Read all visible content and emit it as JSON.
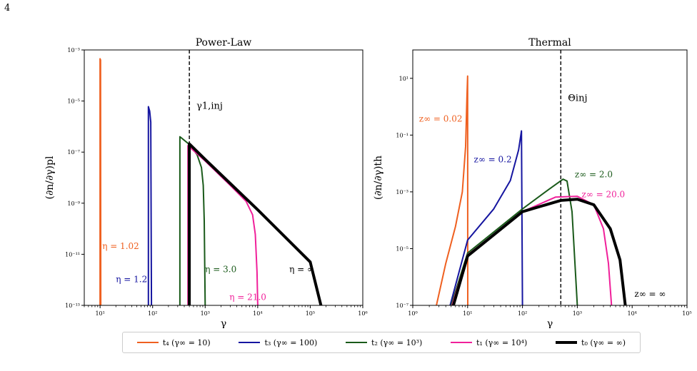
{
  "page_number": "4",
  "colors": {
    "t4": "#ef6020",
    "t3": "#1515a0",
    "t2": "#1a5a1a",
    "t1": "#f0209a",
    "t0": "#000000"
  },
  "legend": [
    {
      "label": "t₄ (γ∞ = 10)",
      "color": "#ef6020",
      "width": 2
    },
    {
      "label": "t₃ (γ∞ = 100)",
      "color": "#1515a0",
      "width": 2
    },
    {
      "label": "t₂ (γ∞ = 10³)",
      "color": "#1a5a1a",
      "width": 2
    },
    {
      "label": "t₁ (γ∞ = 10⁴)",
      "color": "#f0209a",
      "width": 2
    },
    {
      "label": "t₀ (γ∞ = ∞)",
      "color": "#000000",
      "width": 4
    }
  ],
  "chart_data": [
    {
      "type": "line",
      "title": "Power-Law",
      "xlabel": "γ",
      "ylabel": "(∂n/∂γ)pl",
      "xscale": "log",
      "yscale": "log",
      "xlim": [
        5,
        1000000
      ],
      "ylim": [
        1e-13,
        0.001
      ],
      "xticks": [
        {
          "value": 10,
          "label": "10¹"
        },
        {
          "value": 100,
          "label": "10²"
        },
        {
          "value": 1000,
          "label": "10³"
        },
        {
          "value": 10000,
          "label": "10⁴"
        },
        {
          "value": 100000,
          "label": "10⁵"
        },
        {
          "value": 1000000,
          "label": "10⁶"
        }
      ],
      "yticks": [
        {
          "value": 1e-13,
          "label": "10⁻¹³"
        },
        {
          "value": 1e-11,
          "label": "10⁻¹¹"
        },
        {
          "value": 1e-09,
          "label": "10⁻⁹"
        },
        {
          "value": 1e-07,
          "label": "10⁻⁷"
        },
        {
          "value": 1e-05,
          "label": "10⁻⁵"
        },
        {
          "value": 0.001,
          "label": "10⁻³"
        }
      ],
      "vline": {
        "x": 500,
        "label": "γ1,inj",
        "label_y": 5e-06
      },
      "series": [
        {
          "key": "t4",
          "width": 2,
          "points": [
            [
              10,
              1e-13
            ],
            [
              10,
              0.00045
            ],
            [
              10.2,
              0.0004
            ],
            [
              10.3,
              1e-13
            ]
          ]
        },
        {
          "key": "t3",
          "width": 2,
          "points": [
            [
              83,
              1e-13
            ],
            [
              83,
              6e-06
            ],
            [
              88,
              4e-06
            ],
            [
              92,
              1.5e-06
            ],
            [
              95,
              1e-13
            ]
          ]
        },
        {
          "key": "t2",
          "width": 2,
          "points": [
            [
              330,
              1e-13
            ],
            [
              330,
              4e-07
            ],
            [
              500,
              2e-07
            ],
            [
              700,
              8e-08
            ],
            [
              850,
              2.5e-08
            ],
            [
              920,
              5e-09
            ],
            [
              960,
              2e-10
            ],
            [
              1000,
              1e-13
            ]
          ]
        },
        {
          "key": "t1",
          "width": 2,
          "points": [
            [
              470,
              1e-13
            ],
            [
              470,
              1.8e-07
            ],
            [
              1000,
              4.5e-08
            ],
            [
              3000,
              5e-09
            ],
            [
              6000,
              1.2e-09
            ],
            [
              8000,
              3.5e-10
            ],
            [
              9000,
              6e-11
            ],
            [
              9700,
              2e-12
            ],
            [
              10000,
              1e-13
            ]
          ]
        },
        {
          "key": "t0",
          "width": 4,
          "points": [
            [
              500,
              1e-13
            ],
            [
              500,
              2.1e-07
            ],
            [
              1000,
              5.2e-08
            ],
            [
              10000,
              5.5e-10
            ],
            [
              100000,
              5e-12
            ],
            [
              160000,
              1e-13
            ]
          ]
        }
      ],
      "annotations": [
        {
          "text": "η = 1.02",
          "x": 11,
          "y": 1.6e-11,
          "key": "t4"
        },
        {
          "text": "η = 1.2",
          "x": 20,
          "y": 8e-13,
          "key": "t3"
        },
        {
          "text": "η = 3.0",
          "x": 1000,
          "y": 2e-12,
          "key": "t2"
        },
        {
          "text": "η = 21.0",
          "x": 2900,
          "y": 1.6e-13,
          "key": "t1"
        },
        {
          "text": "η = ∞",
          "x": 40000,
          "y": 2e-12,
          "key": "t0"
        }
      ]
    },
    {
      "type": "line",
      "title": "Thermal",
      "xlabel": "γ",
      "ylabel": "(∂n/∂γ)th",
      "xscale": "log",
      "yscale": "log",
      "xlim": [
        1,
        100000
      ],
      "ylim": [
        1e-07,
        100
      ],
      "xticks": [
        {
          "value": 1,
          "label": "10⁰"
        },
        {
          "value": 10,
          "label": "10¹"
        },
        {
          "value": 100,
          "label": "10²"
        },
        {
          "value": 1000,
          "label": "10³"
        },
        {
          "value": 10000,
          "label": "10⁴"
        },
        {
          "value": 100000,
          "label": "10⁵"
        }
      ],
      "yticks": [
        {
          "value": 1e-07,
          "label": "10⁻⁷"
        },
        {
          "value": 1e-05,
          "label": "10⁻⁵"
        },
        {
          "value": 0.001,
          "label": "10⁻³"
        },
        {
          "value": 0.1,
          "label": "10⁻¹"
        },
        {
          "value": 10,
          "label": "10¹"
        }
      ],
      "vline": {
        "x": 500,
        "label": "Θinj",
        "label_y": 1.6
      },
      "series": [
        {
          "key": "t4",
          "width": 2,
          "points": [
            [
              2.7,
              1e-07
            ],
            [
              4,
              3e-06
            ],
            [
              6,
              6e-05
            ],
            [
              8,
              0.001
            ],
            [
              9.2,
              0.04
            ],
            [
              9.7,
              2
            ],
            [
              10,
              12
            ],
            [
              10.05,
              1e-07
            ]
          ]
        },
        {
          "key": "t3",
          "width": 2,
          "points": [
            [
              4.8,
              1e-07
            ],
            [
              10,
              2e-05
            ],
            [
              30,
              0.00025
            ],
            [
              60,
              0.0025
            ],
            [
              85,
              0.03
            ],
            [
              96,
              0.14
            ],
            [
              100,
              1e-07
            ]
          ]
        },
        {
          "key": "t2",
          "width": 2,
          "points": [
            [
              5,
              1e-07
            ],
            [
              10,
              7e-06
            ],
            [
              100,
              0.00025
            ],
            [
              300,
              0.0012
            ],
            [
              550,
              0.0028
            ],
            [
              650,
              0.0024
            ],
            [
              800,
              0.0002
            ],
            [
              1000,
              1e-07
            ]
          ]
        },
        {
          "key": "t1",
          "width": 2,
          "points": [
            [
              5.2,
              1e-07
            ],
            [
              10,
              6e-06
            ],
            [
              100,
              0.0002
            ],
            [
              400,
              0.00065
            ],
            [
              1000,
              0.0007
            ],
            [
              2000,
              0.00035
            ],
            [
              3000,
              5e-05
            ],
            [
              3700,
              3e-06
            ],
            [
              4200,
              1e-07
            ]
          ]
        },
        {
          "key": "t0",
          "width": 4,
          "points": [
            [
              5.5,
              1e-07
            ],
            [
              10,
              5.5e-06
            ],
            [
              100,
              0.0002
            ],
            [
              500,
              0.0005
            ],
            [
              1000,
              0.00055
            ],
            [
              2000,
              0.00035
            ],
            [
              4000,
              5e-05
            ],
            [
              6000,
              4e-06
            ],
            [
              7500,
              1e-07
            ]
          ]
        }
      ],
      "annotations": [
        {
          "text": "z∞ = 0.02",
          "x": 1.3,
          "y": 0.3,
          "key": "t4"
        },
        {
          "text": "z∞ = 0.2",
          "x": 13,
          "y": 0.011,
          "key": "t3"
        },
        {
          "text": "z∞ = 2.0",
          "x": 900,
          "y": 0.0033,
          "key": "t2"
        },
        {
          "text": "z∞ = 20.0",
          "x": 1200,
          "y": 0.00065,
          "key": "t1"
        },
        {
          "text": "z∞ = ∞",
          "x": 11000,
          "y": 2e-07,
          "key": "t0"
        }
      ]
    }
  ]
}
